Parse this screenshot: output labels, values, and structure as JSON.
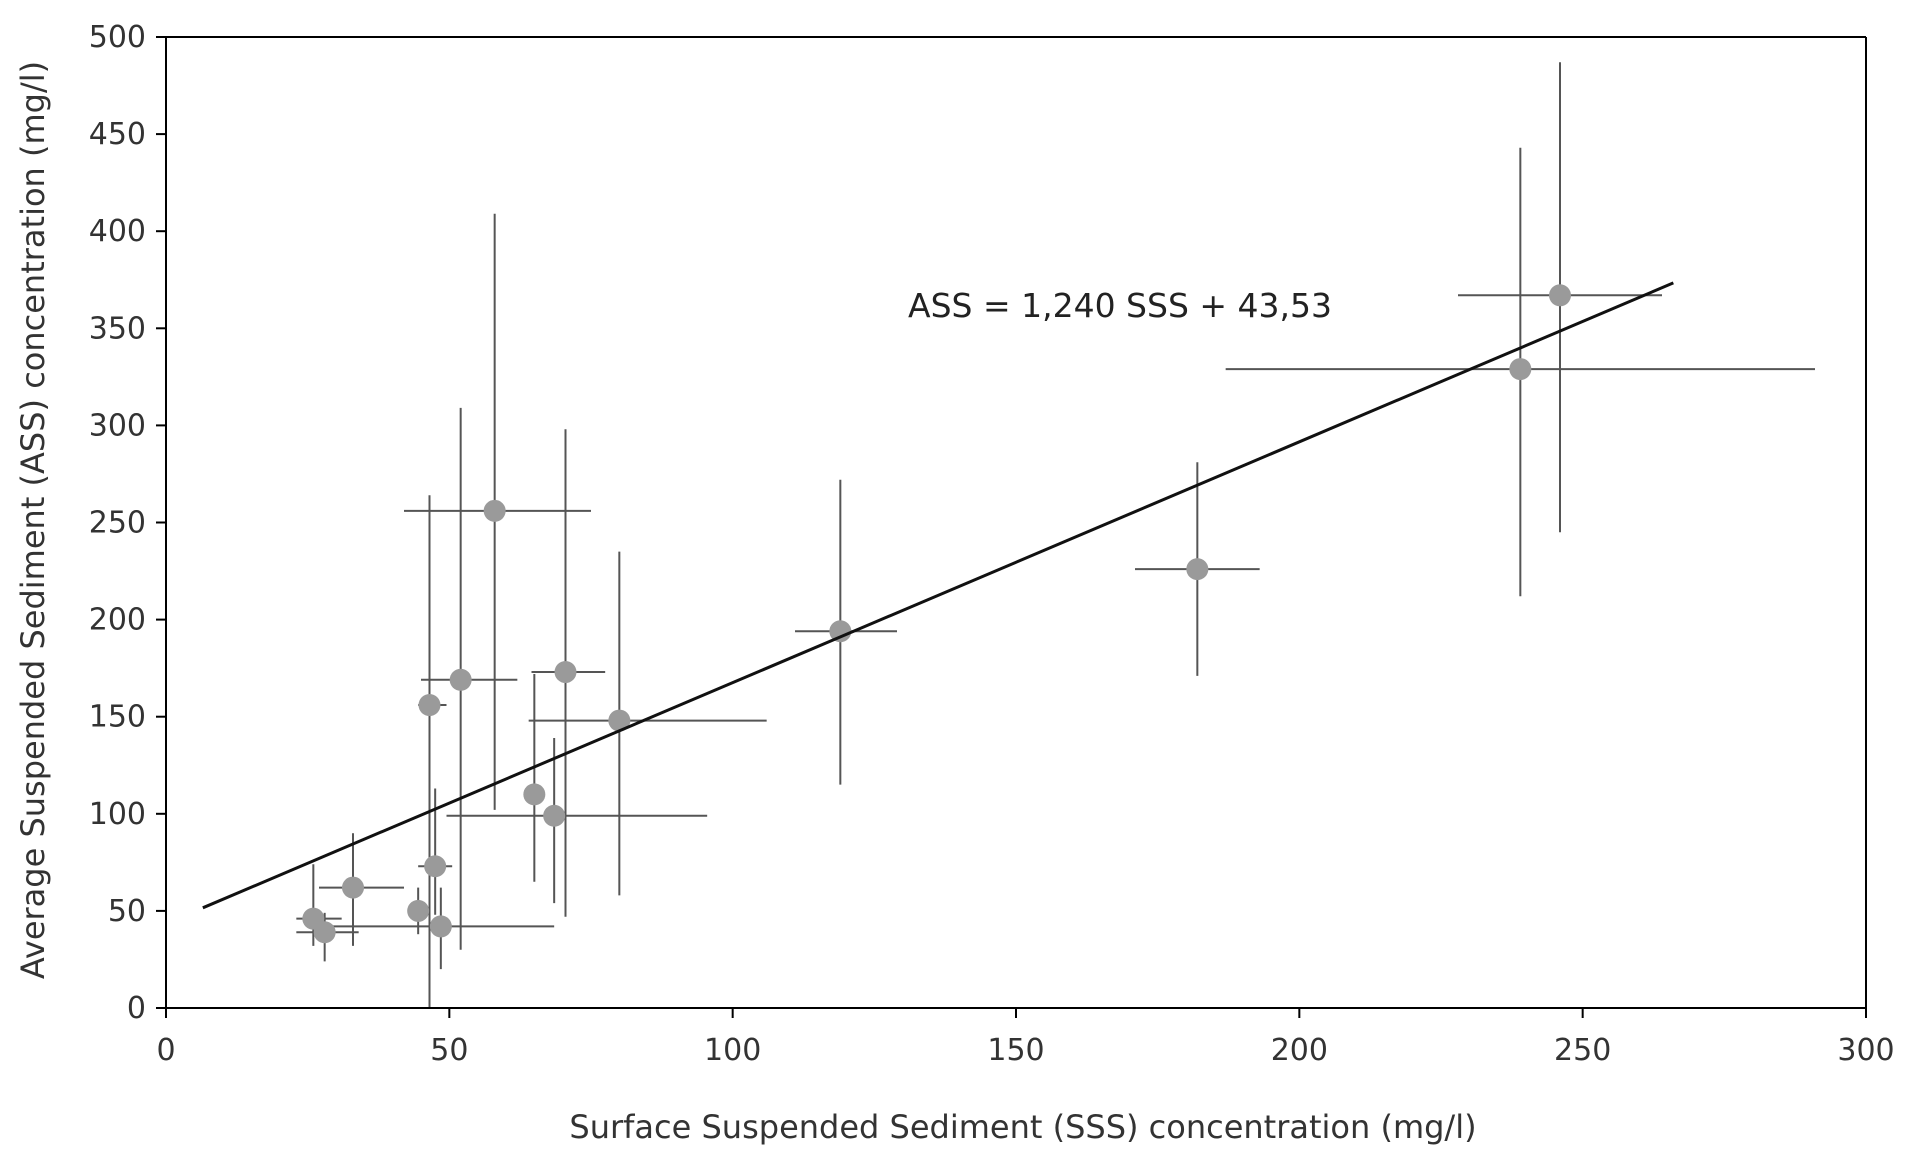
{
  "chart_data": {
    "type": "scatter",
    "title": "",
    "xlabel": "Surface Suspended Sediment (SSS) concentration (mg/l)",
    "ylabel": "Average Suspended Sediment (ASS) concentration (mg/l)",
    "xlim": [
      0,
      300
    ],
    "ylim": [
      0,
      500
    ],
    "x_ticks": [
      0,
      50,
      100,
      150,
      200,
      250,
      300
    ],
    "y_ticks": [
      0,
      50,
      100,
      150,
      200,
      250,
      300,
      350,
      400,
      450,
      500
    ],
    "grid": false,
    "legend": "none",
    "point_color": "#9a9a9a",
    "errorbar_color": "#555555",
    "points": [
      {
        "x": 26,
        "y": 46,
        "xerr": [
          3,
          5
        ],
        "yerr": [
          14,
          28
        ]
      },
      {
        "x": 28,
        "y": 39,
        "xerr": [
          5,
          6
        ],
        "yerr": [
          15,
          10
        ]
      },
      {
        "x": 33,
        "y": 62,
        "xerr": [
          6,
          9
        ],
        "yerr": [
          30,
          28
        ]
      },
      {
        "x": 44.5,
        "y": 50,
        "xerr": [
          0,
          0
        ],
        "yerr": [
          12,
          12
        ]
      },
      {
        "x": 46.5,
        "y": 156,
        "xerr": [
          2,
          3
        ],
        "yerr": [
          156,
          108
        ]
      },
      {
        "x": 47.5,
        "y": 73,
        "xerr": [
          3,
          3
        ],
        "yerr": [
          25,
          40
        ]
      },
      {
        "x": 48.5,
        "y": 42,
        "xerr": [
          22,
          20
        ],
        "yerr": [
          22,
          20
        ]
      },
      {
        "x": 52,
        "y": 169,
        "xerr": [
          7,
          10
        ],
        "yerr": [
          139,
          140
        ]
      },
      {
        "x": 58,
        "y": 256,
        "xerr": [
          16,
          17
        ],
        "yerr": [
          154,
          153
        ]
      },
      {
        "x": 65,
        "y": 110,
        "xerr": [
          0,
          0
        ],
        "yerr": [
          45,
          62
        ]
      },
      {
        "x": 68.5,
        "y": 99,
        "xerr": [
          19,
          27
        ],
        "yerr": [
          45,
          40
        ]
      },
      {
        "x": 70.5,
        "y": 173,
        "xerr": [
          6,
          7
        ],
        "yerr": [
          126,
          125
        ]
      },
      {
        "x": 80,
        "y": 148,
        "xerr": [
          16,
          26
        ],
        "yerr": [
          90,
          87
        ]
      },
      {
        "x": 119,
        "y": 194,
        "xerr": [
          8,
          10
        ],
        "yerr": [
          79,
          78
        ]
      },
      {
        "x": 182,
        "y": 226,
        "xerr": [
          11,
          11
        ],
        "yerr": [
          55,
          55
        ]
      },
      {
        "x": 239,
        "y": 329,
        "xerr": [
          52,
          52
        ],
        "yerr": [
          117,
          114
        ]
      },
      {
        "x": 246,
        "y": 367,
        "xerr": [
          18,
          18
        ],
        "yerr": [
          122,
          120
        ]
      }
    ],
    "trendline": {
      "slope": 1.24,
      "intercept": 43.53,
      "x_range": [
        6.5,
        266
      ],
      "label": "ASS = 1,240 SSS + 43,53"
    }
  }
}
